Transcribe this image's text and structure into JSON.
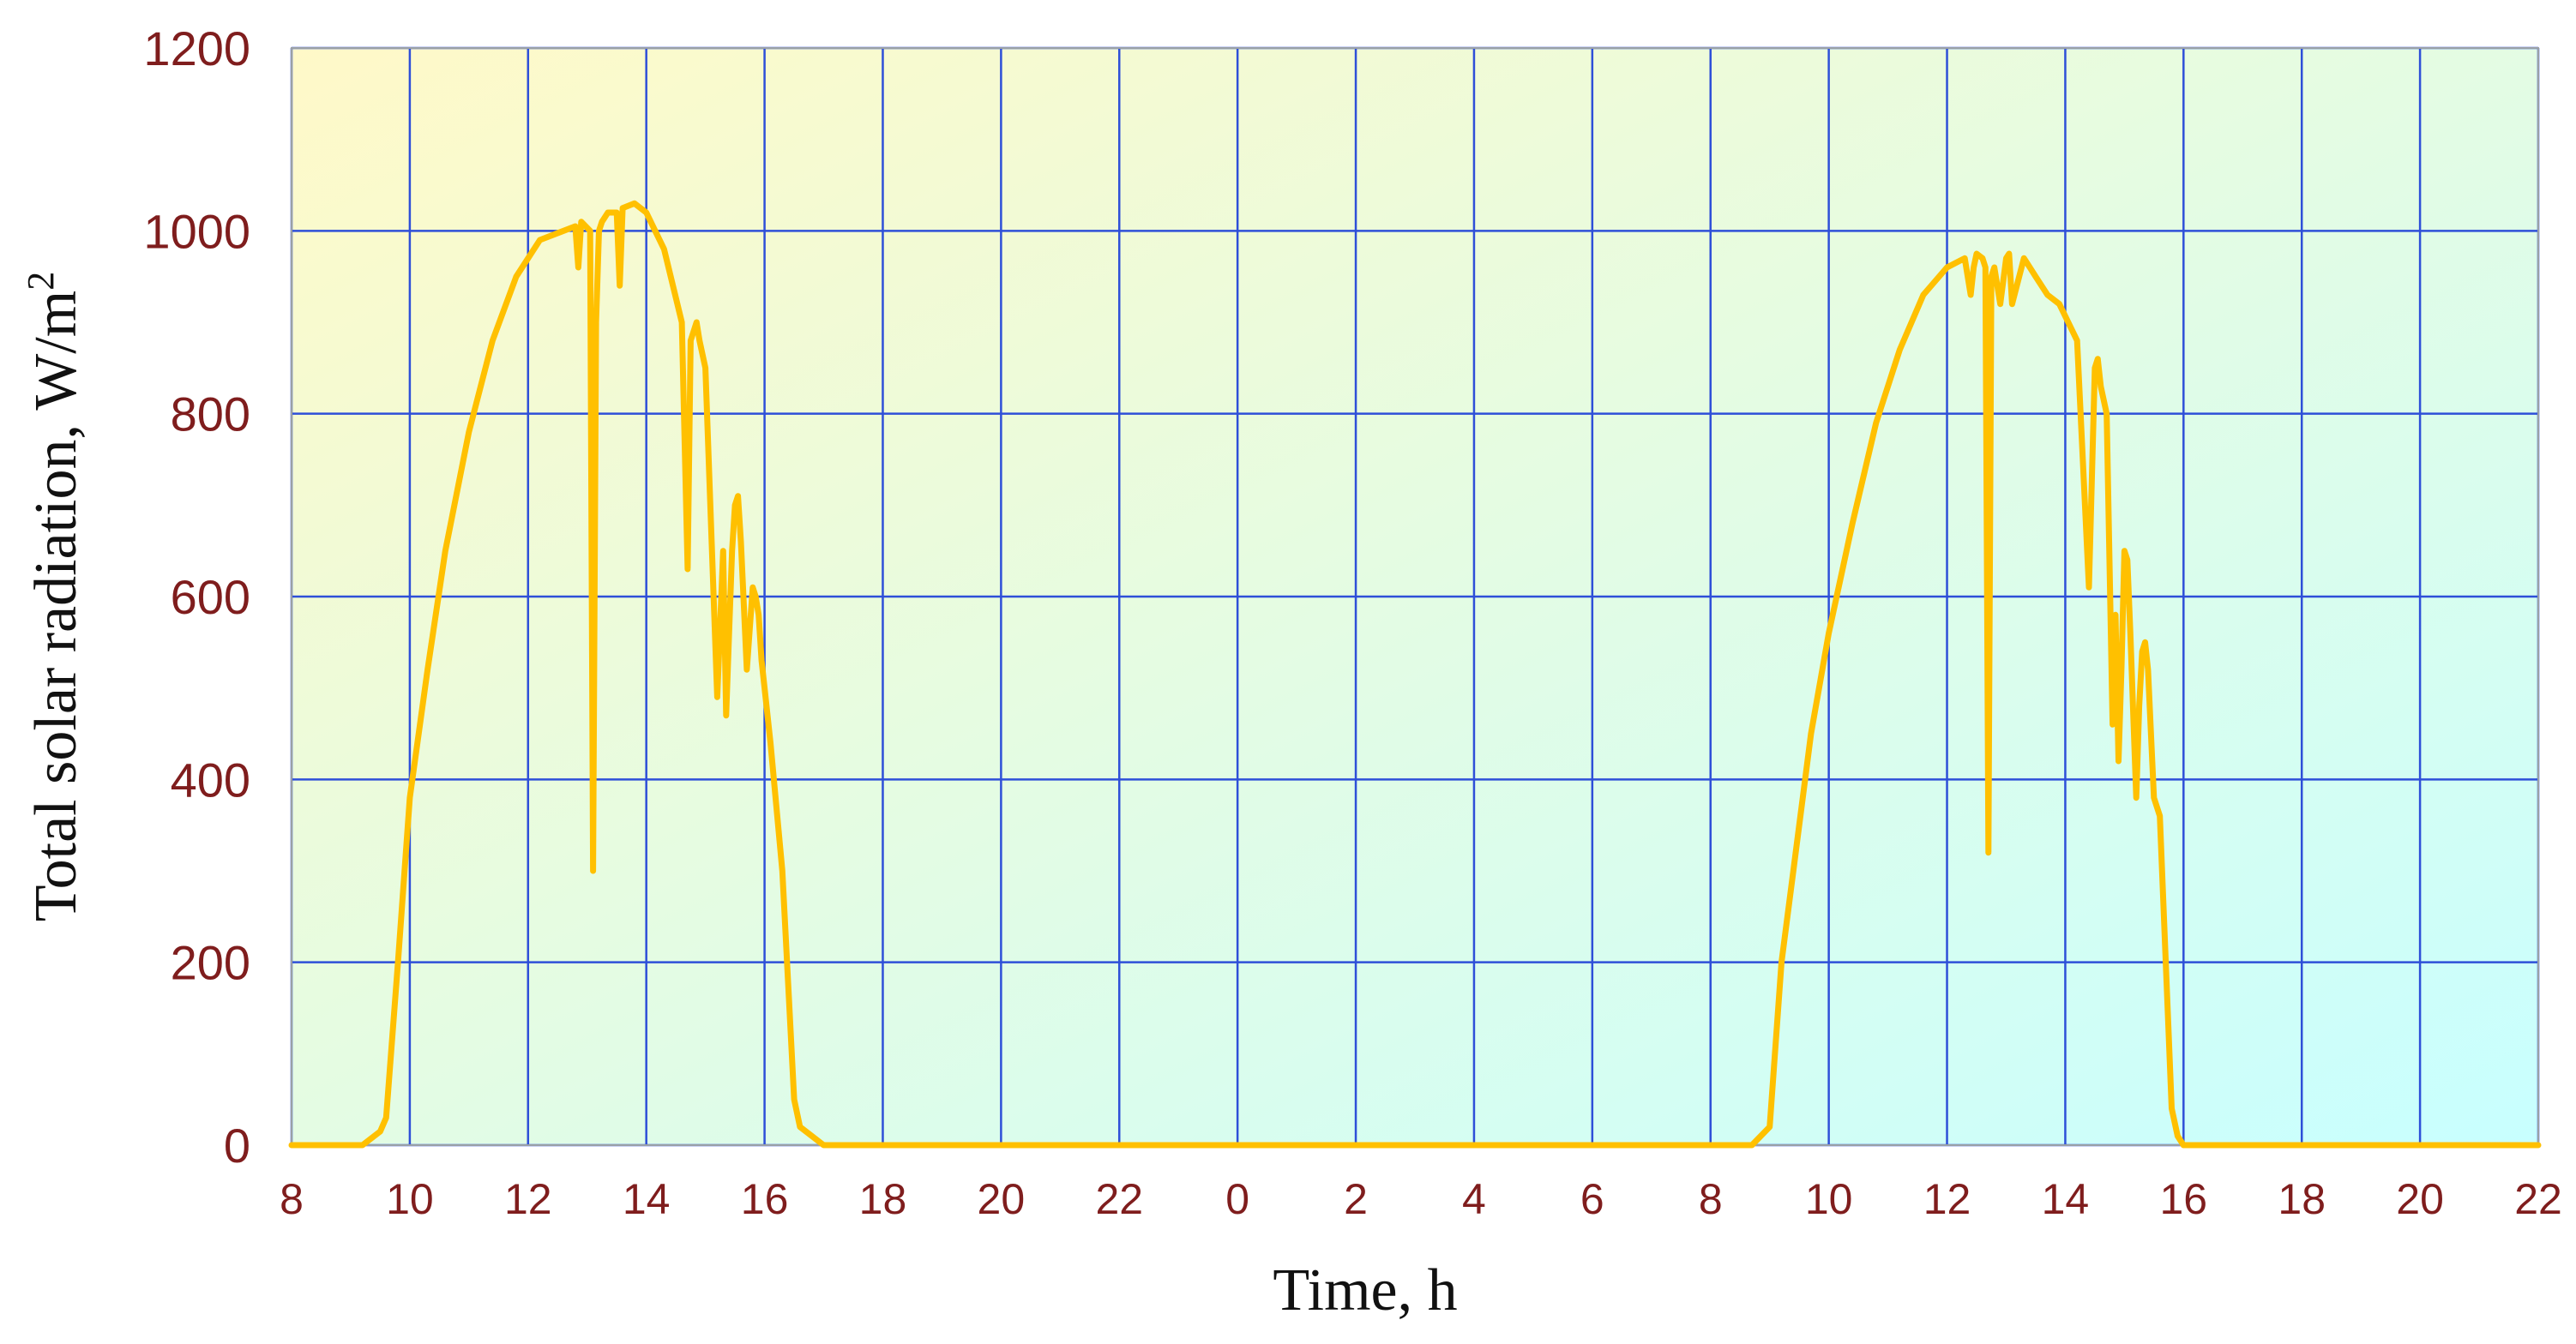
{
  "chart_data": {
    "type": "line",
    "title": "",
    "xlabel": "Time, h",
    "ylabel_text": "Total solar radiation,  W/m",
    "ylabel_sup": "2",
    "ylim": [
      0,
      1200
    ],
    "y_ticks": [
      0,
      200,
      400,
      600,
      800,
      1000,
      1200
    ],
    "x_tick_labels": [
      "8",
      "10",
      "12",
      "14",
      "16",
      "18",
      "20",
      "22",
      "0",
      "2",
      "4",
      "6",
      "8",
      "10",
      "12",
      "14",
      "16",
      "18",
      "20",
      "22"
    ],
    "grid": true,
    "xlim": [
      8,
      46
    ],
    "colors": {
      "line": "#FFC000",
      "grid": "#2E4FD8",
      "tick_text": "#7f1d1d",
      "bg_top_left": "#FFF9C8",
      "bg_bottom_right": "#C8FFFF"
    },
    "series": [
      {
        "x": [
          8,
          9.2,
          9.5,
          9.6,
          9.8,
          10.0,
          10.3,
          10.6,
          11.0,
          11.4,
          11.8,
          12.2,
          12.6,
          12.8,
          12.85,
          12.9,
          13.05,
          13.1,
          13.15,
          13.2,
          13.25,
          13.35,
          13.5,
          13.55,
          13.6,
          13.8,
          14.0,
          14.3,
          14.6,
          14.7,
          14.75,
          14.85,
          14.9,
          15.0,
          15.2,
          15.3,
          15.35,
          15.4,
          15.45,
          15.5,
          15.55,
          15.6,
          15.7,
          15.8,
          15.85,
          15.9,
          15.95,
          16.0,
          16.1,
          16.3,
          16.5,
          16.6,
          17.0,
          17.5,
          20,
          24,
          28,
          32,
          32.7,
          33.0,
          33.2,
          33.4,
          33.7,
          34.0,
          34.4,
          34.8,
          35.2,
          35.6,
          36.0,
          36.3,
          36.4,
          36.45,
          36.5,
          36.6,
          36.65,
          36.7,
          36.75,
          36.8,
          36.9,
          37.0,
          37.05,
          37.1,
          37.3,
          37.4,
          37.5,
          37.7,
          37.9,
          38.2,
          38.4,
          38.5,
          38.55,
          38.6,
          38.7,
          38.8,
          38.85,
          38.9,
          38.95,
          39.0,
          39.05,
          39.1,
          39.2,
          39.25,
          39.3,
          39.35,
          39.4,
          39.5,
          39.6,
          39.8,
          39.9,
          40.0,
          40.1,
          40.4,
          40.8,
          41,
          46
        ],
        "values": [
          0,
          0,
          15,
          30,
          200,
          380,
          520,
          650,
          780,
          880,
          950,
          990,
          1000,
          1005,
          960,
          1010,
          1000,
          300,
          900,
          1000,
          1010,
          1020,
          1020,
          940,
          1025,
          1030,
          1020,
          980,
          900,
          630,
          880,
          900,
          880,
          850,
          490,
          650,
          470,
          560,
          650,
          700,
          710,
          660,
          520,
          610,
          600,
          580,
          530,
          500,
          440,
          300,
          50,
          20,
          0,
          0,
          0,
          0,
          0,
          0,
          0,
          20,
          200,
          300,
          450,
          560,
          680,
          790,
          870,
          930,
          960,
          970,
          930,
          960,
          975,
          970,
          960,
          320,
          950,
          960,
          920,
          970,
          975,
          920,
          970,
          960,
          950,
          930,
          920,
          880,
          610,
          850,
          860,
          830,
          800,
          460,
          580,
          420,
          520,
          650,
          640,
          560,
          380,
          480,
          540,
          550,
          520,
          380,
          360,
          40,
          10,
          0,
          0,
          0,
          0,
          0,
          0
        ]
      }
    ]
  }
}
